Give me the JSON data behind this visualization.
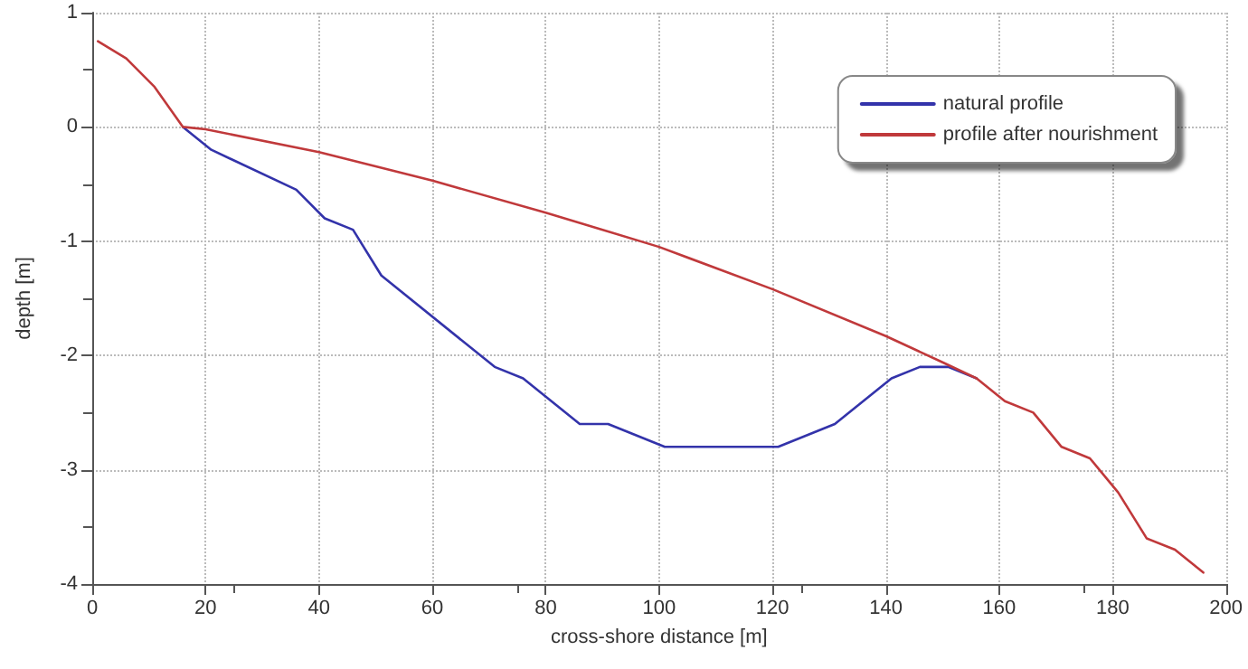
{
  "chart_data": {
    "type": "line",
    "xlabel": "cross-shore distance [m]",
    "ylabel": "depth [m]",
    "xlim": [
      0,
      200
    ],
    "xticks": [
      0,
      20,
      40,
      60,
      80,
      100,
      120,
      140,
      160,
      180,
      200
    ],
    "ylim": [
      -4,
      1
    ],
    "yticks": [
      -4,
      -3,
      -2,
      -1,
      0,
      1
    ],
    "grid": true,
    "legend": "top right",
    "line_style": "solid",
    "marker": "none",
    "series": [
      {
        "name": "natural profile",
        "color": "#3333aa",
        "x": [
          16,
          21,
          36,
          41,
          46,
          51,
          71,
          76,
          86,
          91,
          101,
          121,
          131,
          141,
          146,
          151,
          156
        ],
        "values": [
          0,
          -0.2,
          -0.55,
          -0.8,
          -0.9,
          -1.3,
          -2.1,
          -2.2,
          -2.6,
          -2.6,
          -2.8,
          -2.8,
          -2.6,
          -2.2,
          -2.1,
          -2.1,
          -2.2
        ]
      },
      {
        "name": "profile after nourishment",
        "color": "#c0393b",
        "x": [
          1,
          6,
          11,
          16,
          20,
          40,
          60,
          80,
          100,
          120,
          140,
          150,
          156,
          161,
          166,
          171,
          176,
          181,
          186,
          191,
          196
        ],
        "values": [
          0.75,
          0.6,
          0.35,
          0,
          -0.02,
          -0.22,
          -0.47,
          -0.75,
          -1.05,
          -1.42,
          -1.83,
          -2.06,
          -2.2,
          -2.4,
          -2.5,
          -2.8,
          -2.9,
          -3.2,
          -3.6,
          -3.7,
          -3.9
        ]
      }
    ]
  }
}
